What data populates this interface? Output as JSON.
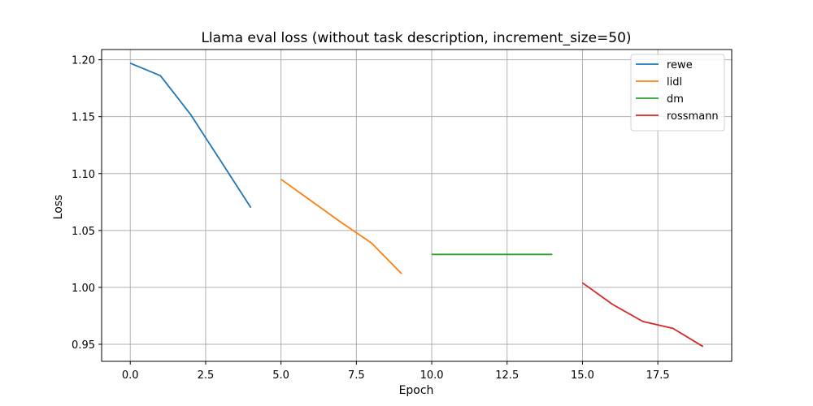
{
  "chart_data": {
    "type": "line",
    "title": "Llama eval loss (without task description, increment_size=50)",
    "xlabel": "Epoch",
    "ylabel": "Loss",
    "xlim": [
      -0.95,
      19.95
    ],
    "ylim": [
      0.935,
      1.209
    ],
    "xticks": [
      0.0,
      2.5,
      5.0,
      7.5,
      10.0,
      12.5,
      15.0,
      17.5
    ],
    "xtick_labels": [
      "0.0",
      "2.5",
      "5.0",
      "7.5",
      "10.0",
      "12.5",
      "15.0",
      "17.5"
    ],
    "yticks": [
      0.95,
      1.0,
      1.05,
      1.1,
      1.15,
      1.2
    ],
    "ytick_labels": [
      "0.95",
      "1.00",
      "1.05",
      "1.10",
      "1.15",
      "1.20"
    ],
    "grid": true,
    "legend_position": "top-right",
    "series": [
      {
        "name": "rewe",
        "color": "#1f77b4",
        "x": [
          0,
          1,
          2,
          3,
          4
        ],
        "y": [
          1.197,
          1.186,
          1.152,
          1.111,
          1.07
        ]
      },
      {
        "name": "lidl",
        "color": "#ff7f0e",
        "x": [
          5,
          6,
          7,
          8,
          9
        ],
        "y": [
          1.095,
          1.076,
          1.057,
          1.039,
          1.012
        ]
      },
      {
        "name": "dm",
        "color": "#2ca02c",
        "x": [
          10,
          11,
          12,
          13,
          14
        ],
        "y": [
          1.029,
          1.029,
          1.029,
          1.029,
          1.029
        ]
      },
      {
        "name": "rossmann",
        "color": "#d62728",
        "x": [
          15,
          16,
          17,
          18,
          19
        ],
        "y": [
          1.004,
          0.985,
          0.97,
          0.964,
          0.948
        ]
      }
    ]
  }
}
